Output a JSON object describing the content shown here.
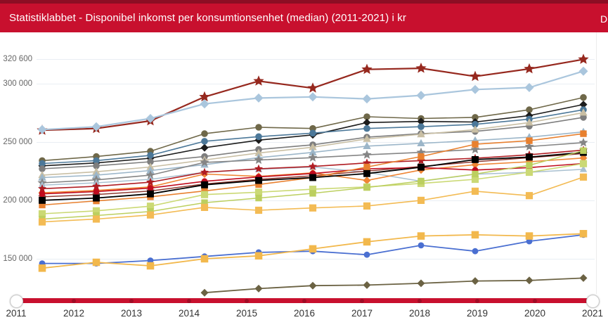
{
  "header": {
    "title": "Statistiklabbet - Disponibel inkomst per konsumtionsenhet (median) (2011-2021) i kr",
    "right_fragment": "D",
    "bar_color": "#c8102e",
    "top_strip_color": "#8d0e24",
    "text_color": "#ffffff"
  },
  "chart_data": {
    "type": "line",
    "title": "Disponibel inkomst per konsumtionsenhet (median) (2011-2021) i kr",
    "x": [
      2011,
      2012,
      2013,
      2014,
      2015,
      2016,
      2017,
      2018,
      2019,
      2020,
      2021
    ],
    "xlabel": "",
    "ylabel": "kr",
    "ylim": [
      110000,
      330000
    ],
    "grid": true,
    "legend_position": "none",
    "y_ticks": [
      {
        "label": "320 600",
        "value": 320600
      },
      {
        "label": "300 000",
        "value": 300000
      },
      {
        "label": "250 000",
        "value": 250000
      },
      {
        "label": "200 000",
        "value": 200000
      },
      {
        "label": "150 000",
        "value": 150000
      }
    ],
    "x_tick_labels": [
      "2011",
      "2012",
      "2013",
      "2014",
      "2015",
      "2016",
      "2017",
      "2018",
      "2019",
      "2020",
      "2021"
    ],
    "series": [
      {
        "name": "dark-red-star-top",
        "color": "#96281e",
        "marker": "star",
        "size": 7,
        "width": 2.2,
        "values": [
          260000,
          261500,
          268000,
          288500,
          302000,
          296000,
          312000,
          313000,
          306000,
          312500,
          320600
        ]
      },
      {
        "name": "light-blue-diamond-top",
        "color": "#aac6dd",
        "marker": "diamond",
        "size": 6.5,
        "width": 2.2,
        "values": [
          260500,
          263000,
          270000,
          282500,
          287500,
          288500,
          286800,
          289800,
          294800,
          296500,
          310500
        ]
      },
      {
        "name": "olive-circle",
        "color": "#6f6849",
        "marker": "circle",
        "size": 6,
        "width": 1.6,
        "values": [
          234000,
          237500,
          242000,
          257000,
          262500,
          261500,
          271500,
          270000,
          271000,
          277500,
          288000
        ]
      },
      {
        "name": "black-diamond",
        "color": "#1c1c1c",
        "marker": "diamond",
        "size": 5.5,
        "width": 1.6,
        "values": [
          229500,
          232000,
          236000,
          245000,
          251500,
          256000,
          266500,
          267500,
          267000,
          272500,
          282000
        ]
      },
      {
        "name": "steel-blue-circle",
        "color": "#4c7899",
        "marker": "circle",
        "size": 6,
        "width": 1.6,
        "values": [
          231500,
          234000,
          238500,
          250500,
          254500,
          257500,
          261500,
          263000,
          265000,
          269500,
          277500
        ]
      },
      {
        "name": "gray-circle",
        "color": "#7e7e7e",
        "marker": "circle",
        "size": 6,
        "width": 1.6,
        "values": [
          227000,
          229500,
          233000,
          237500,
          243500,
          247500,
          254000,
          257000,
          259000,
          263500,
          271000
        ]
      },
      {
        "name": "tan-triangle",
        "color": "#c9bfa4",
        "marker": "triangle",
        "size": 6,
        "width": 1.6,
        "values": [
          221500,
          224500,
          228500,
          234500,
          240500,
          245500,
          252500,
          256500,
          260500,
          266500,
          275000
        ]
      },
      {
        "name": "blue-gray-triangle-upper",
        "color": "#9cb6c9",
        "marker": "triangle",
        "size": 6,
        "width": 1.6,
        "values": [
          219500,
          221500,
          225500,
          230500,
          236500,
          241000,
          246400,
          248800,
          251200,
          254000,
          258500
        ]
      },
      {
        "name": "gray-star",
        "color": "#858585",
        "marker": "star",
        "size": 6,
        "width": 1.6,
        "values": [
          215000,
          217500,
          221500,
          232500,
          234500,
          236500,
          239000,
          241000,
          243500,
          246000,
          249400
        ]
      },
      {
        "name": "blue-gray-triangle-lower",
        "color": "#a9c0d0",
        "marker": "triangle",
        "size": 5.5,
        "width": 1.5,
        "values": [
          213000,
          215000,
          218000,
          224000,
          226500,
          228500,
          224000,
          216300,
          222300,
          224000,
          226500
        ]
      },
      {
        "name": "dark-red-star-mid",
        "color": "#8f3b33",
        "marker": "star",
        "size": 5.5,
        "width": 1.5,
        "values": [
          203000,
          205000,
          208000,
          214000,
          218000,
          221000,
          225000,
          229000,
          233000,
          236500,
          240000
        ]
      },
      {
        "name": "orange-diamond",
        "color": "#ef8635",
        "marker": "diamond",
        "size": 5.5,
        "width": 1.6,
        "values": [
          206500,
          208500,
          211500,
          222500,
          220500,
          223500,
          217000,
          226000,
          230500,
          233000,
          236200
        ]
      },
      {
        "name": "red-star",
        "color": "#b01c22",
        "marker": "star",
        "size": 5.5,
        "width": 1.6,
        "values": [
          210000,
          212000,
          215500,
          224000,
          227000,
          229000,
          232000,
          234000,
          236000,
          239000,
          243000
        ]
      },
      {
        "name": "red-circle",
        "color": "#c00b1e",
        "marker": "circle",
        "size": 5.5,
        "width": 1.6,
        "values": [
          205500,
          207500,
          210500,
          216300,
          220000,
          223000,
          227000,
          228000,
          225900,
          228000,
          231500
        ]
      },
      {
        "name": "orange-square",
        "color": "#e8802f",
        "marker": "square",
        "size": 5.5,
        "width": 1.6,
        "values": [
          196000,
          199500,
          203000,
          208000,
          213500,
          219500,
          228500,
          237500,
          248000,
          251000,
          257000
        ]
      },
      {
        "name": "black-square",
        "color": "#000000",
        "marker": "square",
        "size": 5.8,
        "width": 1.8,
        "values": [
          200000,
          202000,
          205500,
          213300,
          217000,
          219500,
          222900,
          228400,
          234900,
          237000,
          241000
        ]
      },
      {
        "name": "lime-square-1",
        "color": "#cbd975",
        "marker": "square",
        "size": 6,
        "width": 1.6,
        "values": [
          188500,
          191000,
          195000,
          204900,
          207000,
          209500,
          211500,
          214500,
          218000,
          224000,
          231400
        ]
      },
      {
        "name": "lime-square-2",
        "color": "#bccf5f",
        "marker": "square",
        "size": 5.5,
        "width": 1.5,
        "values": [
          184000,
          187000,
          190500,
          198000,
          202000,
          206000,
          211000,
          216500,
          222500,
          230000,
          242500
        ]
      },
      {
        "name": "yellow-square-mid",
        "color": "#f3bb54",
        "marker": "square",
        "size": 6,
        "width": 1.6,
        "values": [
          181500,
          184000,
          187500,
          194000,
          191500,
          193500,
          195200,
          200000,
          207800,
          204000,
          219900
        ]
      },
      {
        "name": "blue-circle-bottom",
        "color": "#4a6fd1",
        "marker": "circle",
        "size": 5.5,
        "width": 1.8,
        "values": [
          146000,
          146000,
          148500,
          152000,
          155500,
          156500,
          153500,
          161500,
          156500,
          165000,
          170500
        ]
      },
      {
        "name": "yellow-square-bottom",
        "color": "#f2b84c",
        "marker": "square",
        "size": 6.2,
        "width": 1.8,
        "values": [
          142000,
          147000,
          144000,
          150000,
          152500,
          158500,
          164500,
          169500,
          170500,
          169500,
          171500
        ]
      },
      {
        "name": "olive-diamond-bottom",
        "color": "#6b6243",
        "marker": "diamond",
        "size": 5.5,
        "width": 1.8,
        "values": [
          null,
          null,
          null,
          121000,
          124500,
          127000,
          127500,
          129000,
          131000,
          131500,
          133500
        ]
      }
    ]
  },
  "slider": {
    "track_color": "#c8102e",
    "dot_color": "#7d0a1f",
    "left_handle_year": "2011",
    "right_handle_year": "2021"
  }
}
